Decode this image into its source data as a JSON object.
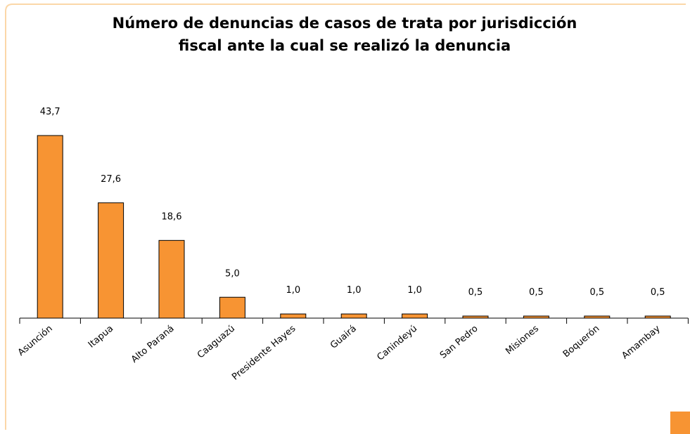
{
  "chart_data": {
    "type": "bar",
    "title": [
      "Número de denuncias de casos de trata por jurisdicción",
      "fiscal ante la cual se realizó la denuncia"
    ],
    "categories": [
      "Asunción",
      "Itapua",
      "Alto Paraná",
      "Caaguazú",
      "Presidente Hayes",
      "Guairá",
      "Canindeyú",
      "San Pedro",
      "Misiones",
      "Boquerón",
      "Amambay"
    ],
    "values": [
      43.7,
      27.6,
      18.6,
      5.0,
      1.0,
      1.0,
      1.0,
      0.5,
      0.5,
      0.5,
      0.5
    ],
    "value_labels": [
      "43,7",
      "27,6",
      "18,6",
      "5,0",
      "1,0",
      "1,0",
      "1,0",
      "0,5",
      "0,5",
      "0,5",
      "0,5"
    ],
    "color": "#f79433",
    "ylim": [
      0,
      50
    ]
  }
}
